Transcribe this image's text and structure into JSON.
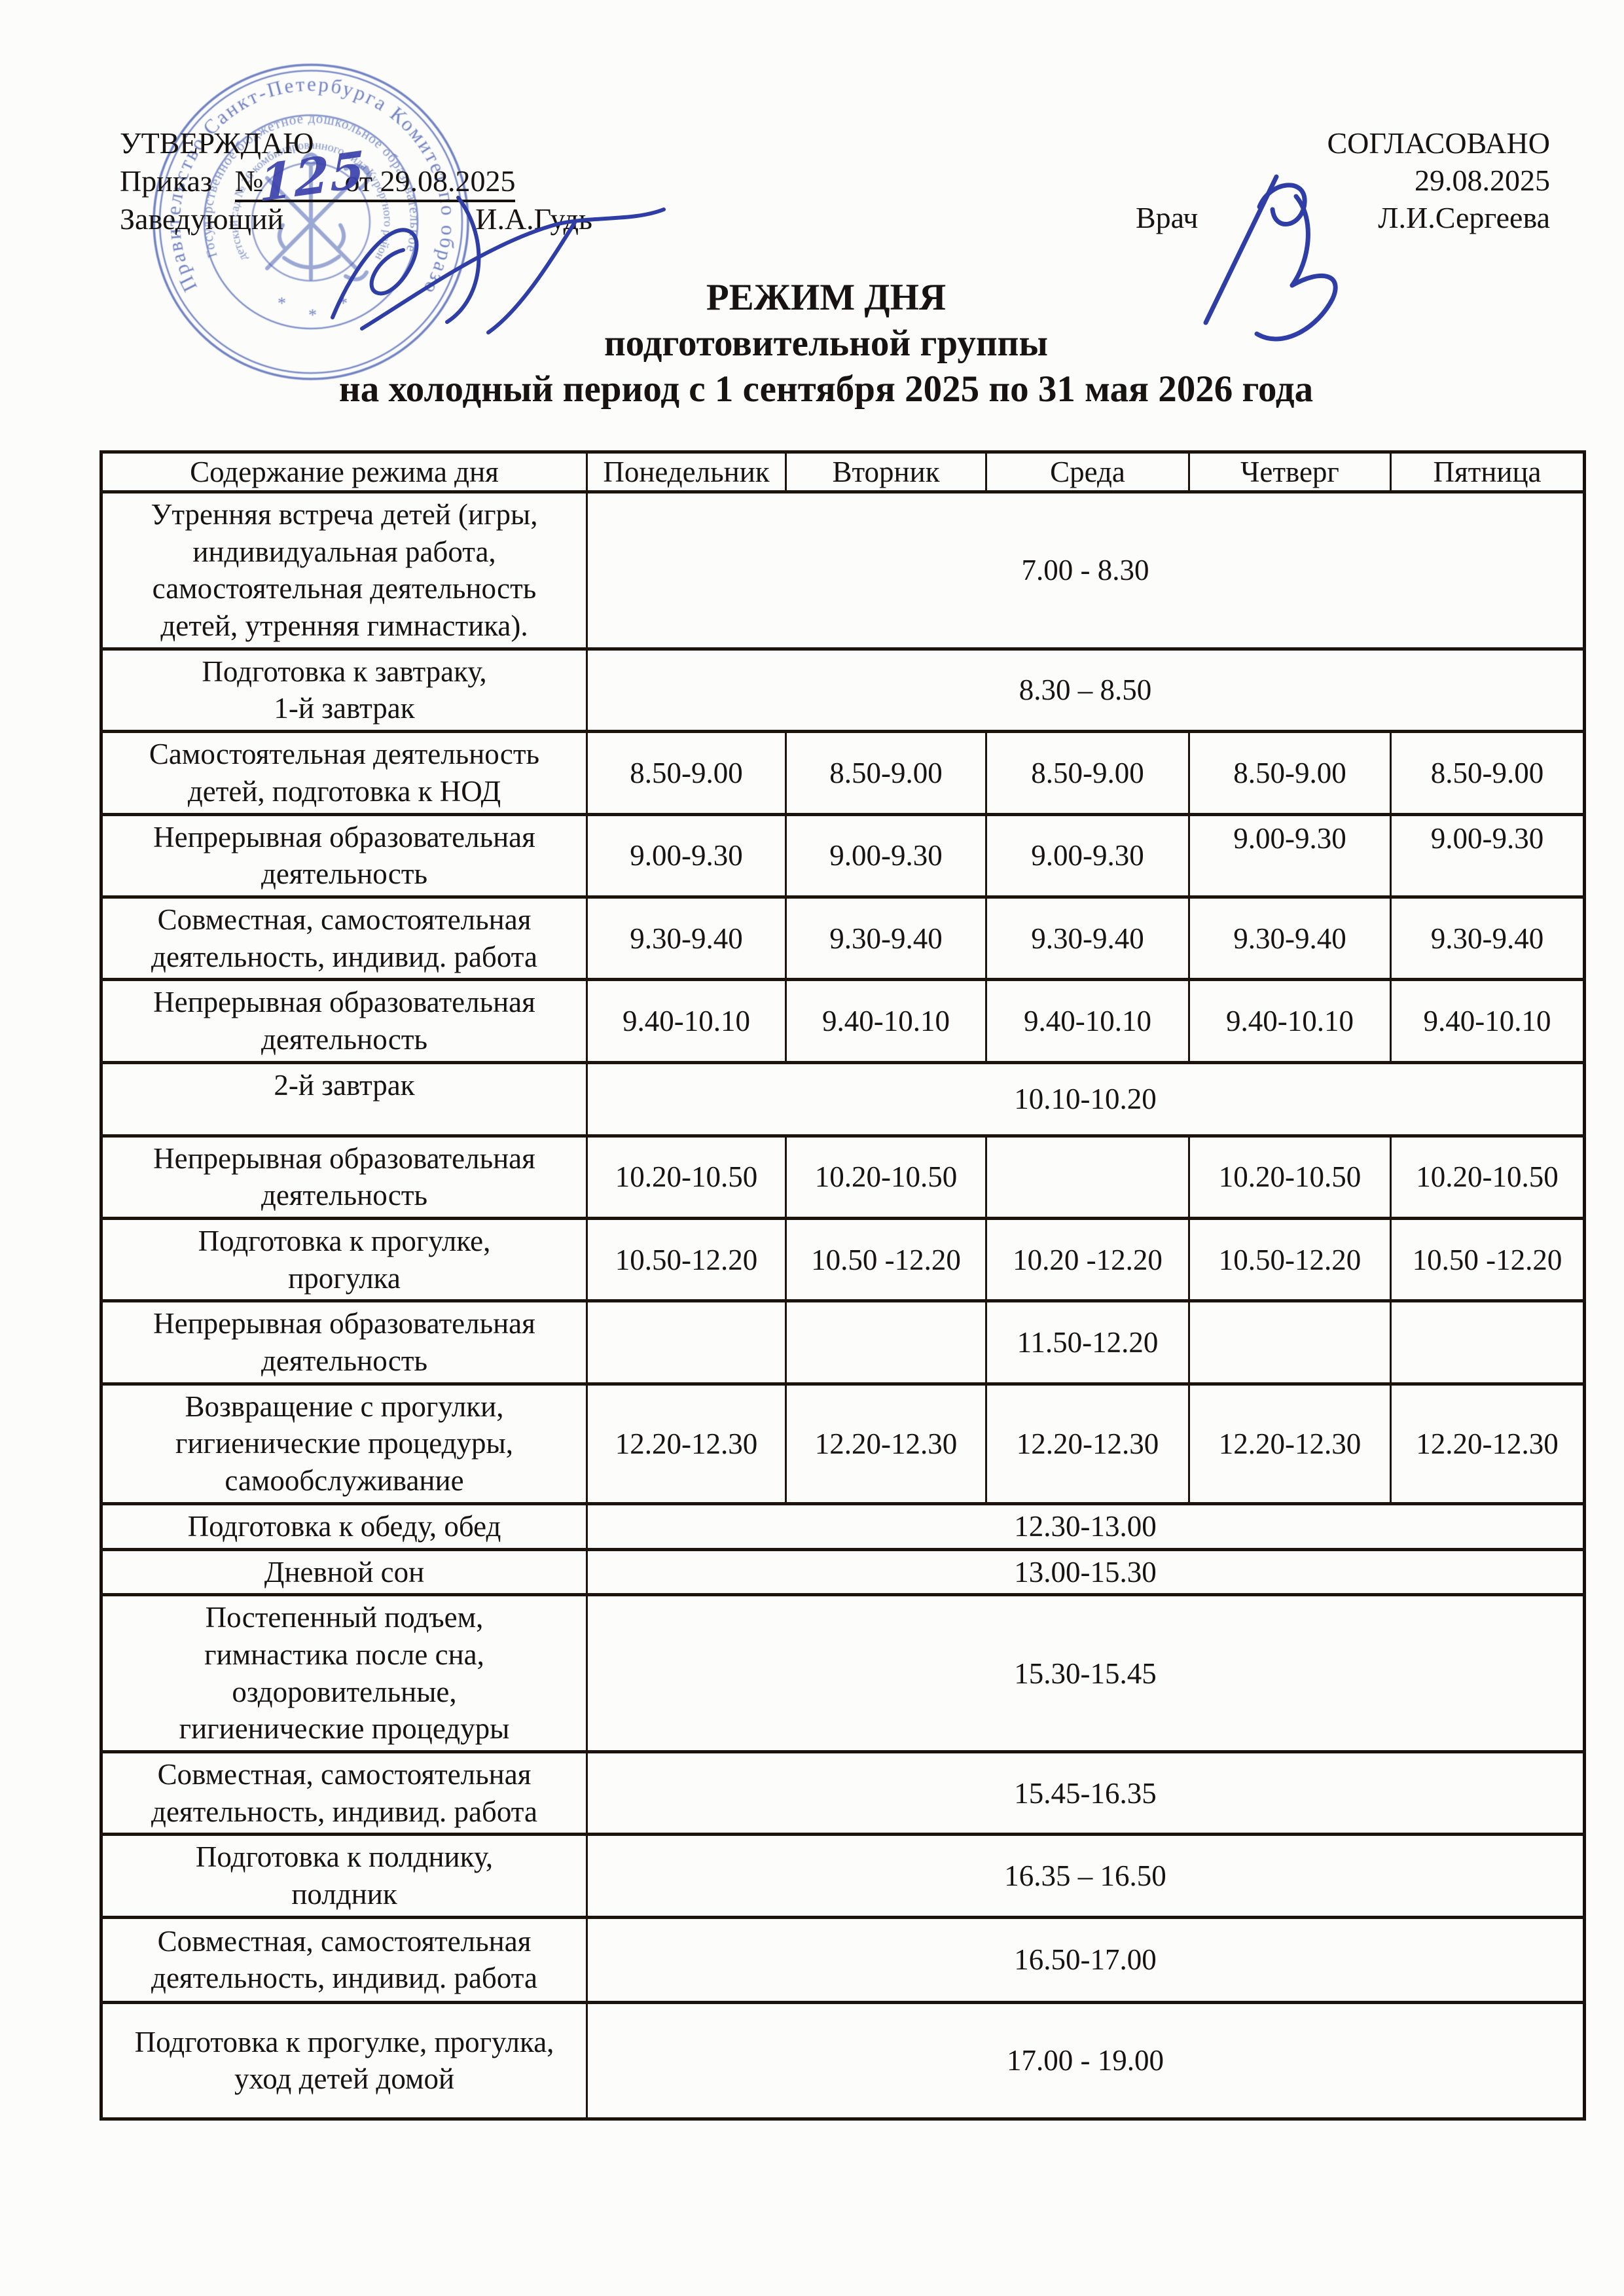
{
  "document": {
    "approve": {
      "heading": "УТВЕРЖДАЮ",
      "order_prefix": "Приказ",
      "order_no_sign": "№",
      "order_number": "125",
      "order_date": "от 29.08.2025",
      "role": "Заведующий",
      "name": "И.А.Гудь"
    },
    "agree": {
      "heading": "СОГЛАСОВАНО",
      "date": "29.08.2025",
      "role": "Врач",
      "name": "Л.И.Сергеева"
    },
    "title": {
      "line1": "РЕЖИМ ДНЯ",
      "line2": "подготовительной группы",
      "line3": "на холодный период с 1 сентября 2025 по 31 мая 2026 года"
    },
    "stamp": {
      "outer_text": "Правительство Санкт-Петербурга      Комитет по образованию",
      "middle_text": "Государственное бюджетное дошкольное образовательное учреждение",
      "inner_text": "детский сад № 26 комбинированного вида Курортного района",
      "separators": "*",
      "color": "#3f57b0"
    },
    "ink_color": "#2e3ea6"
  },
  "table": {
    "headers": [
      "Содержание режима дня",
      "Понедельник",
      "Вторник",
      "Среда",
      "Четверг",
      "Пятница"
    ],
    "rows": [
      {
        "label": "Утренняя встреча детей (игры,\nиндивидуальная работа,\nсамостоятельная деятельность\nдетей, утренняя  гимнастика).",
        "merged": "7.00 - 8.30"
      },
      {
        "label": "Подготовка к завтраку,\n1-й завтрак",
        "merged": "8.30 – 8.50"
      },
      {
        "label": "Самостоятельная деятельность\nдетей, подготовка к НОД",
        "cells": [
          "8.50-9.00",
          "8.50-9.00",
          "8.50-9.00",
          "8.50-9.00",
          "8.50-9.00"
        ]
      },
      {
        "label": "Непрерывная образовательная\nдеятельность",
        "cells": [
          "9.00-9.30",
          "9.00-9.30",
          "9.00-9.30",
          "9.00-9.30",
          "9.00-9.30"
        ]
      },
      {
        "label": "Совместная, самостоятельная\nдеятельность, индивид. работа",
        "cells": [
          "9.30-9.40",
          "9.30-9.40",
          "9.30-9.40",
          "9.30-9.40",
          "9.30-9.40"
        ]
      },
      {
        "label": "Непрерывная образовательная\nдеятельность",
        "cells": [
          "9.40-10.10",
          "9.40-10.10",
          "9.40-10.10",
          "9.40-10.10",
          "9.40-10.10"
        ]
      },
      {
        "label": "2-й завтрак",
        "merged": "10.10-10.20"
      },
      {
        "label": "Непрерывная образовательная\nдеятельность",
        "cells": [
          "10.20-10.50",
          "10.20-10.50",
          "",
          "10.20-10.50",
          "10.20-10.50"
        ]
      },
      {
        "label": "Подготовка к прогулке,\nпрогулка",
        "cells": [
          "10.50-12.20",
          "10.50 -12.20",
          "10.20 -12.20",
          "10.50-12.20",
          "10.50 -12.20"
        ]
      },
      {
        "label": "Непрерывная образовательная\nдеятельность",
        "cells": [
          "",
          "",
          "11.50-12.20",
          "",
          ""
        ]
      },
      {
        "label": "Возвращение с прогулки,\nгигиенические процедуры,\nсамообслуживание",
        "cells": [
          "12.20-12.30",
          "12.20-12.30",
          "12.20-12.30",
          "12.20-12.30",
          "12.20-12.30"
        ]
      },
      {
        "label": "Подготовка к обеду, обед",
        "merged": "12.30-13.00"
      },
      {
        "label": "Дневной сон",
        "merged": "13.00-15.30"
      },
      {
        "label": "Постепенный подъем,\nгимнастика после сна,\nоздоровительные,\nгигиенические процедуры",
        "merged": "15.30-15.45"
      },
      {
        "label": "Совместная, самостоятельная\nдеятельность, индивид. работа",
        "merged": "15.45-16.35"
      },
      {
        "label": "Подготовка к полднику,\nполдник",
        "merged": "16.35 – 16.50"
      },
      {
        "label": "Совместная, самостоятельная\nдеятельность, индивид. работа",
        "merged": "16.50-17.00"
      },
      {
        "label": "Подготовка к прогулке, прогулка,\nуход детей домой",
        "merged": "17.00 - 19.00"
      }
    ]
  }
}
